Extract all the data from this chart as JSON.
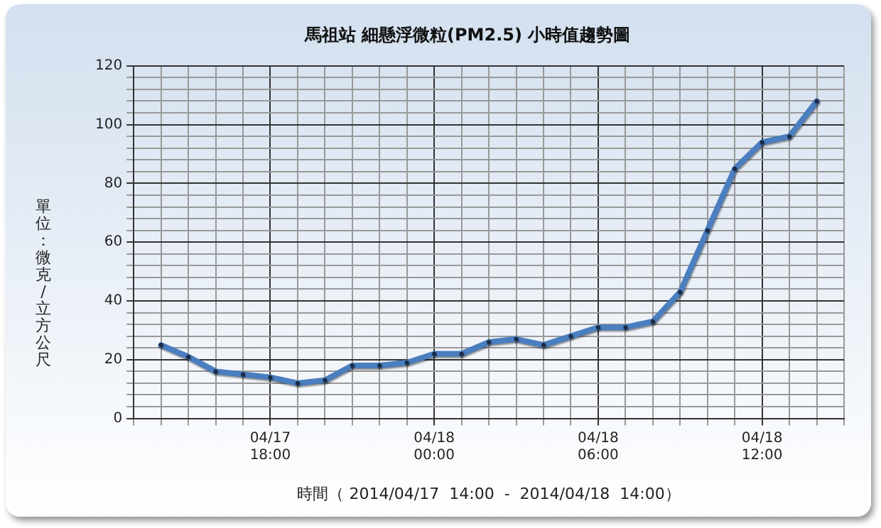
{
  "chart_data": {
    "type": "line",
    "title": "馬祖站 細懸浮微粒(PM2.5) 小時值趨勢圖",
    "xlabel": "時間（ 2014/04/17  14:00  -  2014/04/18  14:00）",
    "ylabel": "單位：微克/立方公尺",
    "x": [
      "2014-04-17T14:00",
      "2014-04-17T15:00",
      "2014-04-17T16:00",
      "2014-04-17T17:00",
      "2014-04-17T18:00",
      "2014-04-17T19:00",
      "2014-04-17T20:00",
      "2014-04-17T21:00",
      "2014-04-17T22:00",
      "2014-04-17T23:00",
      "2014-04-18T00:00",
      "2014-04-18T01:00",
      "2014-04-18T02:00",
      "2014-04-18T03:00",
      "2014-04-18T04:00",
      "2014-04-18T05:00",
      "2014-04-18T06:00",
      "2014-04-18T07:00",
      "2014-04-18T08:00",
      "2014-04-18T09:00",
      "2014-04-18T10:00",
      "2014-04-18T11:00",
      "2014-04-18T12:00",
      "2014-04-18T13:00",
      "2014-04-18T14:00"
    ],
    "series": [
      {
        "color": "#4a7ebf",
        "values": [
          25,
          21,
          16,
          15,
          14,
          12,
          13,
          18,
          18,
          19,
          22,
          22,
          26,
          27,
          25,
          28,
          31,
          31,
          33,
          43,
          64,
          85,
          94,
          96,
          108
        ]
      }
    ],
    "xlim": [
      "2014-04-17T13:00",
      "2014-04-18T15:00"
    ],
    "xticks": [
      {
        "value": "2014-04-17T13:00",
        "label": null
      },
      {
        "value": "2014-04-17T14:00",
        "label": null
      },
      {
        "value": "2014-04-17T15:00",
        "label": null
      },
      {
        "value": "2014-04-17T16:00",
        "label": null
      },
      {
        "value": "2014-04-17T17:00",
        "label": null
      },
      {
        "value": "2014-04-17T18:00",
        "label": "04/17\n18:00"
      },
      {
        "value": "2014-04-17T19:00",
        "label": null
      },
      {
        "value": "2014-04-17T20:00",
        "label": null
      },
      {
        "value": "2014-04-17T21:00",
        "label": null
      },
      {
        "value": "2014-04-17T22:00",
        "label": null
      },
      {
        "value": "2014-04-17T23:00",
        "label": null
      },
      {
        "value": "2014-04-18T00:00",
        "label": "04/18\n00:00"
      },
      {
        "value": "2014-04-18T01:00",
        "label": null
      },
      {
        "value": "2014-04-18T02:00",
        "label": null
      },
      {
        "value": "2014-04-18T03:00",
        "label": null
      },
      {
        "value": "2014-04-18T04:00",
        "label": null
      },
      {
        "value": "2014-04-18T05:00",
        "label": null
      },
      {
        "value": "2014-04-18T06:00",
        "label": "04/18\n06:00"
      },
      {
        "value": "2014-04-18T07:00",
        "label": null
      },
      {
        "value": "2014-04-18T08:00",
        "label": null
      },
      {
        "value": "2014-04-18T09:00",
        "label": null
      },
      {
        "value": "2014-04-18T10:00",
        "label": null
      },
      {
        "value": "2014-04-18T11:00",
        "label": null
      },
      {
        "value": "2014-04-18T12:00",
        "label": "04/18\n12:00"
      },
      {
        "value": "2014-04-18T13:00",
        "label": null
      },
      {
        "value": "2014-04-18T14:00",
        "label": null
      },
      {
        "value": "2014-04-18T15:00",
        "label": null
      }
    ],
    "ylim": [
      0,
      120
    ],
    "yticks": [
      0,
      {
        "value": 4,
        "label": null
      },
      {
        "value": 8,
        "label": null
      },
      {
        "value": 12,
        "label": null
      },
      {
        "value": 16,
        "label": null
      },
      20,
      {
        "value": 24,
        "label": null
      },
      {
        "value": 28,
        "label": null
      },
      {
        "value": 32,
        "label": null
      },
      {
        "value": 36,
        "label": null
      },
      40,
      {
        "value": 44,
        "label": null
      },
      {
        "value": 48,
        "label": null
      },
      {
        "value": 52,
        "label": null
      },
      {
        "value": 56,
        "label": null
      },
      60,
      {
        "value": 64,
        "label": null
      },
      {
        "value": 68,
        "label": null
      },
      {
        "value": 72,
        "label": null
      },
      {
        "value": 76,
        "label": null
      },
      80,
      {
        "value": 84,
        "label": null
      },
      {
        "value": 88,
        "label": null
      },
      {
        "value": 92,
        "label": null
      },
      {
        "value": 96,
        "label": null
      },
      100,
      {
        "value": 104,
        "label": null
      },
      {
        "value": 108,
        "label": null
      },
      {
        "value": 112,
        "label": null
      },
      {
        "value": 116,
        "label": null
      },
      120
    ],
    "grid": true,
    "legend": false,
    "marker": "circle",
    "line_style": "solid"
  }
}
